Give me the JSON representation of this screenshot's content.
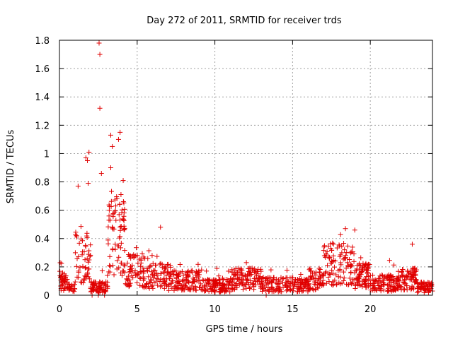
{
  "chart_data": {
    "type": "scatter",
    "title": "Day 272 of 2011, SRMTID for receiver trds",
    "xlabel": "GPS time / hours",
    "ylabel": "SRMTID / TECUs",
    "xlim": [
      0,
      24
    ],
    "ylim": [
      0,
      1.8
    ],
    "xticks": [
      "0",
      "5",
      "10",
      "15",
      "20"
    ],
    "yticks": [
      "0",
      "0.2",
      "0.4",
      "0.6",
      "0.8",
      "1",
      "1.2",
      "1.4",
      "1.6",
      "1.8"
    ],
    "grid": true,
    "marker": "+",
    "color": "#e00000",
    "notable_points": [
      {
        "x": 2.55,
        "y": 1.78
      },
      {
        "x": 2.6,
        "y": 1.7
      },
      {
        "x": 2.6,
        "y": 1.32
      },
      {
        "x": 3.9,
        "y": 1.15
      },
      {
        "x": 3.3,
        "y": 1.13
      },
      {
        "x": 3.8,
        "y": 1.1
      },
      {
        "x": 3.4,
        "y": 1.05
      },
      {
        "x": 1.9,
        "y": 1.01
      },
      {
        "x": 1.7,
        "y": 0.97
      },
      {
        "x": 1.8,
        "y": 0.95
      },
      {
        "x": 2.7,
        "y": 0.86
      },
      {
        "x": 3.3,
        "y": 0.9
      },
      {
        "x": 4.1,
        "y": 0.81
      },
      {
        "x": 1.2,
        "y": 0.77
      },
      {
        "x": 1.85,
        "y": 0.79
      },
      {
        "x": 6.5,
        "y": 0.48
      },
      {
        "x": 18.4,
        "y": 0.47
      },
      {
        "x": 19.0,
        "y": 0.46
      },
      {
        "x": 22.7,
        "y": 0.36
      },
      {
        "x": 13.3,
        "y": 0.0
      },
      {
        "x": 2.1,
        "y": 0.0
      },
      {
        "x": 2.5,
        "y": 0.0
      },
      {
        "x": 2.9,
        "y": 0.0
      }
    ]
  }
}
